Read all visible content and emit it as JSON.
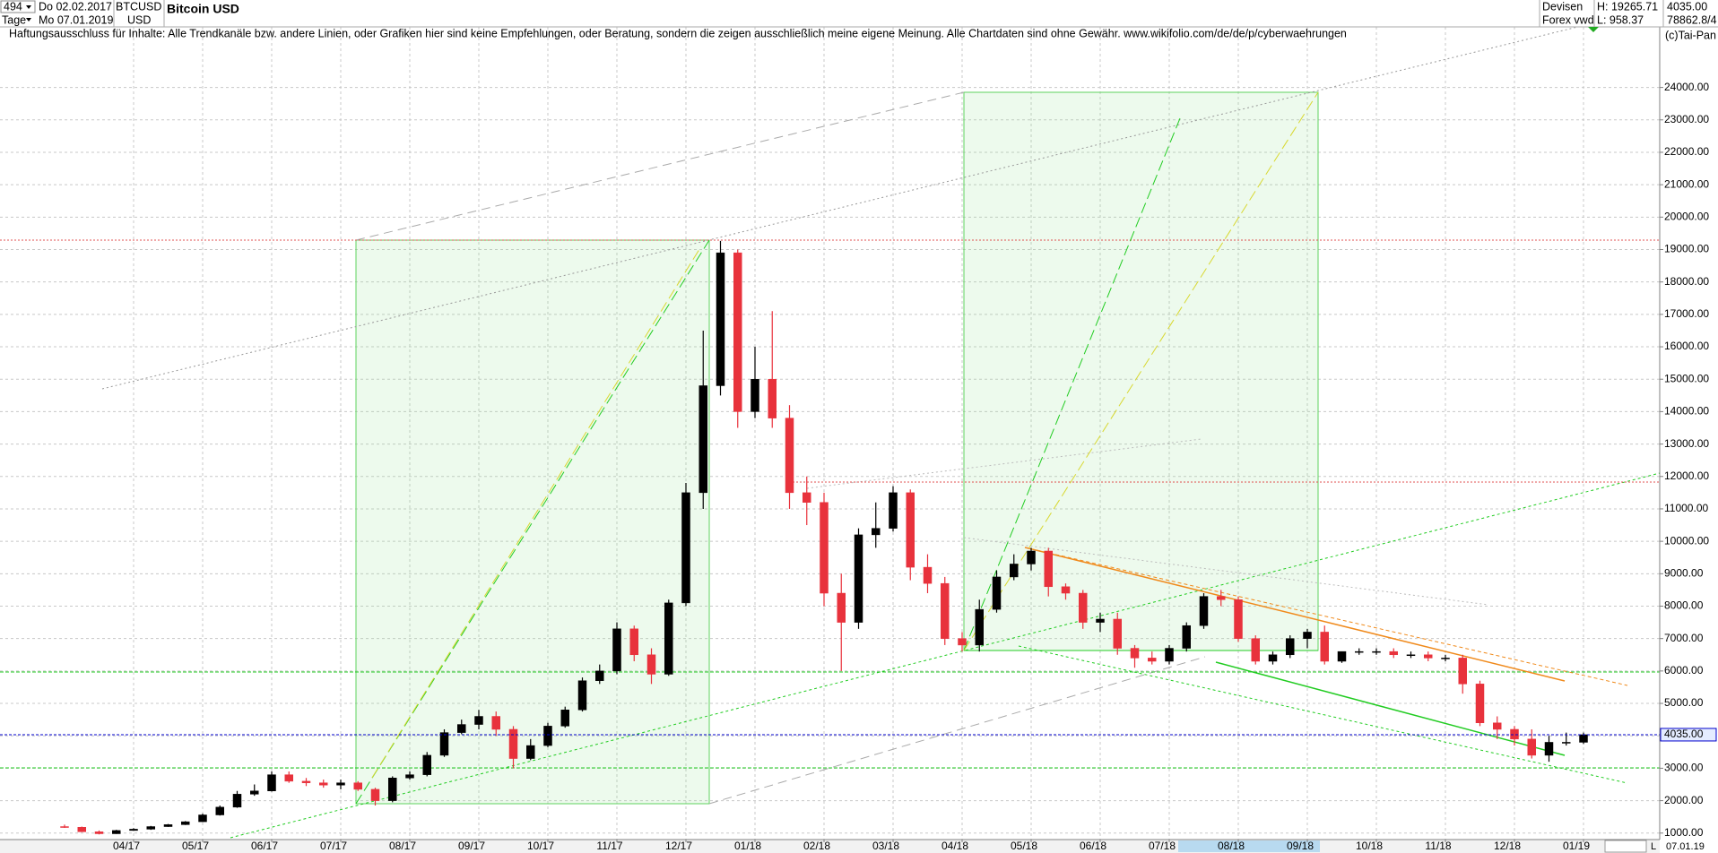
{
  "header": {
    "count": "494",
    "unit": "Tage",
    "date_from": "Do 02.02.2017",
    "date_to": "Mo 07.01.2019",
    "symbol": "BTCUSD",
    "currency": "USD",
    "disclaimer": "Haftungsausschluss für Inhalte: Alle Trendkanäle bzw. andere Linien, oder Grafiken hier sind keine Empfehlungen, oder Beratung, sondern die zeigen ausschließlich meine eigene Meinung. Alle Chartdaten sind ohne Gewähr.  www.wikifolio.com/de/de/p/cyberwaehrungen",
    "copyright": "(c)Tai-Pan",
    "exchange": "Devisen",
    "source": "Forex vwd",
    "high": "H: 19265.71",
    "low": "L: 958.37",
    "last": "4035.00",
    "volume": "78862.8/4",
    "bottom_date": "07.01.19",
    "bottom_mark": "L"
  },
  "chart_data": {
    "type": "candlestick",
    "title": "Bitcoin USD",
    "categories": [
      null,
      null,
      null,
      null,
      "04/17",
      null,
      null,
      null,
      "05/17",
      null,
      null,
      null,
      "06/17",
      null,
      null,
      null,
      "07/17",
      null,
      null,
      null,
      "08/17",
      null,
      null,
      null,
      "09/17",
      null,
      null,
      null,
      "10/17",
      null,
      null,
      null,
      "11/17",
      null,
      null,
      null,
      "12/17",
      null,
      null,
      null,
      "01/18",
      null,
      null,
      null,
      "02/18",
      null,
      null,
      null,
      "03/18",
      null,
      null,
      null,
      "04/18",
      null,
      null,
      null,
      "05/18",
      null,
      null,
      null,
      "06/18",
      null,
      null,
      null,
      "07/18",
      null,
      null,
      null,
      "08/18",
      null,
      null,
      null,
      "09/18",
      null,
      null,
      null,
      "10/18",
      null,
      null,
      null,
      "11/18",
      null,
      null,
      null,
      "12/18",
      null,
      null,
      null,
      "01/19"
    ],
    "open": [
      1200,
      1180,
      1040,
      980,
      1080,
      1120,
      1200,
      1260,
      1350,
      1560,
      1800,
      2200,
      2300,
      2800,
      2600,
      2550,
      2480,
      2550,
      2350,
      2000,
      2700,
      2800,
      3400,
      4100,
      4350,
      4600,
      4200,
      3300,
      3700,
      4300,
      4800,
      5700,
      6000,
      7300,
      6500,
      5900,
      8100,
      11500,
      14800,
      18900,
      14000,
      15000,
      13800,
      11500,
      11200,
      8400,
      7500,
      10200,
      10400,
      11500,
      9200,
      8700,
      7000,
      6800,
      7900,
      8900,
      9300,
      9700,
      8600,
      8400,
      7500,
      7600,
      6700,
      6400,
      6300,
      6700,
      7400,
      8300,
      8200,
      7000,
      6300,
      6500,
      7000,
      7200,
      6300,
      6600,
      6600,
      6600,
      6500,
      6500,
      6400,
      6400,
      5600,
      4400,
      4200,
      3900,
      3400,
      3800,
      3800
    ],
    "high": [
      1260,
      1200,
      1080,
      1100,
      1150,
      1220,
      1280,
      1370,
      1600,
      1850,
      2300,
      2500,
      2900,
      2900,
      2700,
      2650,
      2650,
      2600,
      2400,
      2750,
      2900,
      3500,
      4200,
      4500,
      4800,
      4750,
      4300,
      3900,
      4400,
      4900,
      5800,
      6200,
      7500,
      7400,
      6700,
      8200,
      11800,
      16500,
      19265,
      19000,
      16000,
      17100,
      14200,
      12000,
      11500,
      9000,
      10400,
      11200,
      11700,
      11600,
      9600,
      8900,
      7200,
      8200,
      9100,
      9600,
      9800,
      9800,
      8700,
      8500,
      7800,
      7800,
      6800,
      6600,
      6800,
      7500,
      8400,
      8500,
      8300,
      7100,
      6600,
      7100,
      7300,
      7400,
      6600,
      6700,
      6700,
      6700,
      6600,
      6600,
      6500,
      6500,
      5700,
      4600,
      4300,
      4200,
      4000,
      4100,
      4100
    ],
    "low": [
      1160,
      1030,
      958.37,
      975,
      1070,
      1100,
      1190,
      1250,
      1340,
      1540,
      1780,
      2150,
      2280,
      2550,
      2450,
      2400,
      2350,
      2300,
      1850,
      1950,
      2650,
      2750,
      3350,
      4050,
      4200,
      4000,
      3000,
      3250,
      3650,
      4250,
      4750,
      5600,
      5900,
      6300,
      5600,
      5850,
      8000,
      11000,
      14500,
      13500,
      13800,
      13500,
      11000,
      10500,
      8000,
      6000,
      7300,
      9800,
      10300,
      8800,
      8400,
      6800,
      6600,
      6600,
      7800,
      8800,
      9100,
      8300,
      8200,
      7300,
      7200,
      6500,
      6100,
      6200,
      6200,
      6600,
      7300,
      8000,
      6900,
      6200,
      6200,
      6400,
      6700,
      6200,
      6250,
      6500,
      6500,
      6400,
      6400,
      6300,
      6300,
      5300,
      4300,
      3900,
      3700,
      3300,
      3200,
      3700,
      3750
    ],
    "close": [
      1180,
      1040,
      980,
      1080,
      1120,
      1200,
      1260,
      1350,
      1560,
      1800,
      2200,
      2300,
      2800,
      2600,
      2550,
      2480,
      2550,
      2350,
      2000,
      2700,
      2800,
      3400,
      4100,
      4350,
      4600,
      4200,
      3300,
      3700,
      4300,
      4800,
      5700,
      6000,
      7300,
      6500,
      5900,
      8100,
      11500,
      14800,
      18900,
      14000,
      15000,
      13800,
      11500,
      11200,
      8400,
      7500,
      10200,
      10400,
      11500,
      9200,
      8700,
      7000,
      6800,
      7900,
      8900,
      9300,
      9700,
      8600,
      8400,
      7500,
      7600,
      6700,
      6400,
      6300,
      6700,
      7400,
      8300,
      8200,
      7000,
      6300,
      6500,
      7000,
      7200,
      6300,
      6600,
      6600,
      6600,
      6500,
      6500,
      6400,
      6400,
      5600,
      4400,
      4200,
      3900,
      3400,
      3800,
      3800,
      4035
    ],
    "up_color": "#000000",
    "down_color": "#e8323c",
    "ylim": [
      800,
      26200
    ],
    "yticks": [
      {
        "value": 1000,
        "label": "1000.00"
      },
      {
        "value": 2000,
        "label": "2000.00"
      },
      {
        "value": 3000,
        "label": "3000.00"
      },
      {
        "value": 4000,
        "label": "4000.00"
      },
      {
        "value": 5000,
        "label": "5000.00"
      },
      {
        "value": 6000,
        "label": "6000.00"
      },
      {
        "value": 7000,
        "label": "7000.00"
      },
      {
        "value": 8000,
        "label": "8000.00"
      },
      {
        "value": 9000,
        "label": "9000.00"
      },
      {
        "value": 10000,
        "label": "10000.00"
      },
      {
        "value": 11000,
        "label": "11000.00"
      },
      {
        "value": 12000,
        "label": "12000.00"
      },
      {
        "value": 13000,
        "label": "13000.00"
      },
      {
        "value": 14000,
        "label": "14000.00"
      },
      {
        "value": 15000,
        "label": "15000.00"
      },
      {
        "value": 16000,
        "label": "16000.00"
      },
      {
        "value": 17000,
        "label": "17000.00"
      },
      {
        "value": 18000,
        "label": "18000.00"
      },
      {
        "value": 19000,
        "label": "19000.00"
      },
      {
        "value": 20000,
        "label": "20000.00"
      },
      {
        "value": 21000,
        "label": "21000.00"
      },
      {
        "value": 22000,
        "label": "22000.00"
      },
      {
        "value": 23000,
        "label": "23000.00"
      },
      {
        "value": 24000,
        "label": "24000.00"
      }
    ],
    "grid": true,
    "price_line": {
      "value": 4035,
      "label": "4035.00",
      "color": "#0000cc"
    }
  }
}
